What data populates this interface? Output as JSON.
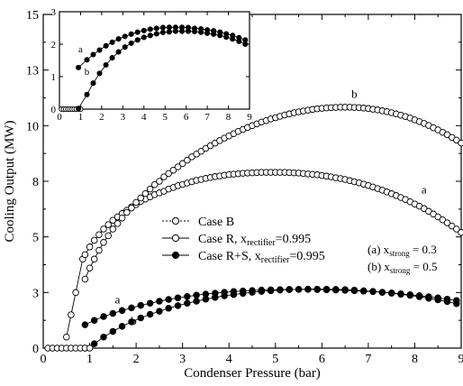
{
  "chart_data": {
    "type": "scatter",
    "xlabel": "Condenser Pressure (bar)",
    "ylabel": "Cooling Output (MW)",
    "xlim": [
      0,
      9
    ],
    "ylim": [
      0,
      15
    ],
    "x_ticks": [
      "0",
      "1",
      "2",
      "3",
      "4",
      "5",
      "6",
      "7",
      "8",
      "9"
    ],
    "y_ticks": [
      {
        "value": 0,
        "label": "0"
      },
      {
        "value": 2.5,
        "label": "3"
      },
      {
        "value": 5,
        "label": "5"
      },
      {
        "value": 7.5,
        "label": "8"
      },
      {
        "value": 10,
        "label": "10"
      },
      {
        "value": 12.5,
        "label": "13"
      },
      {
        "value": 15,
        "label": "15"
      }
    ],
    "grid": false,
    "legend": {
      "placement": "center",
      "entries": [
        {
          "label": "Case B",
          "marker": "dotted-circle",
          "subscript": "",
          "suffix": ""
        },
        {
          "label": "Case R, x",
          "marker": "open-circle",
          "subscript": "rectifier",
          "suffix": "=0.995"
        },
        {
          "label": "Case R+S, x",
          "marker": "filled-circle",
          "subscript": "rectifier",
          "suffix": "=0.995"
        }
      ]
    },
    "annotations": [
      {
        "prefix": "(a) x",
        "subscript": "strong",
        "suffix": " = 0.3"
      },
      {
        "prefix": "(b) x",
        "subscript": "strong",
        "suffix": " = 0.5"
      }
    ],
    "curve_labels": [
      "a",
      "b"
    ],
    "series": [
      {
        "style": "dotted-circle",
        "label": "",
        "x": [
          0.1,
          0.2,
          0.3,
          0.4,
          0.5,
          0.6,
          0.7,
          0.8,
          0.9,
          1.0
        ],
        "y": [
          0,
          0,
          0,
          0,
          0,
          0,
          0,
          0,
          0,
          0
        ]
      },
      {
        "style": "open-circle",
        "label": "a",
        "x": [
          0.5,
          0.6,
          0.7,
          0.85,
          0.9,
          1.0,
          1.1,
          1.2,
          1.3,
          1.4,
          1.5,
          1.6,
          1.7,
          1.8,
          1.9,
          2.0,
          2.1,
          2.2,
          2.3,
          2.4,
          2.5,
          2.6,
          2.7,
          2.8,
          2.9,
          3.0,
          3.1,
          3.2,
          3.3,
          3.4,
          3.5,
          3.6,
          3.7,
          3.8,
          3.9,
          4.0,
          4.1,
          4.2,
          4.3,
          4.4,
          4.5,
          4.6,
          4.7,
          4.8,
          4.9,
          5.0,
          5.1,
          5.2,
          5.3,
          5.4,
          5.5,
          5.6,
          5.7,
          5.8,
          5.9,
          6.0,
          6.1,
          6.2,
          6.3,
          6.4,
          6.5,
          6.6,
          6.7,
          6.8,
          6.9,
          7.0,
          7.1,
          7.2,
          7.3,
          7.4,
          7.5,
          7.6,
          7.7,
          7.8,
          7.9,
          8.0,
          8.1,
          8.2,
          8.3,
          8.4,
          8.5,
          8.6,
          8.7,
          8.8,
          8.9,
          9.0
        ],
        "y": [
          0.5,
          1.5,
          2.5,
          4.0,
          4.2,
          4.55,
          4.85,
          5.1,
          5.35,
          5.55,
          5.75,
          5.9,
          6.05,
          6.2,
          6.35,
          6.45,
          6.6,
          6.7,
          6.8,
          6.9,
          6.98,
          7.05,
          7.15,
          7.22,
          7.3,
          7.36,
          7.42,
          7.48,
          7.54,
          7.58,
          7.63,
          7.67,
          7.71,
          7.74,
          7.77,
          7.8,
          7.82,
          7.84,
          7.86,
          7.87,
          7.88,
          7.89,
          7.9,
          7.9,
          7.9,
          7.9,
          7.9,
          7.9,
          7.89,
          7.88,
          7.87,
          7.85,
          7.83,
          7.81,
          7.79,
          7.76,
          7.73,
          7.7,
          7.66,
          7.62,
          7.58,
          7.53,
          7.48,
          7.43,
          7.37,
          7.31,
          7.24,
          7.17,
          7.1,
          7.02,
          6.94,
          6.86,
          6.77,
          6.68,
          6.58,
          6.48,
          6.38,
          6.27,
          6.15,
          6.03,
          5.9,
          5.77,
          5.63,
          5.49,
          5.35,
          5.2
        ]
      },
      {
        "style": "open-circle",
        "label": "b",
        "x": [
          0.9,
          1.0,
          1.1,
          1.2,
          1.3,
          1.4,
          1.5,
          1.6,
          1.7,
          1.8,
          1.9,
          2.0,
          2.1,
          2.2,
          2.3,
          2.4,
          2.5,
          2.6,
          2.7,
          2.8,
          2.9,
          3.0,
          3.1,
          3.2,
          3.3,
          3.4,
          3.5,
          3.6,
          3.7,
          3.8,
          3.9,
          4.0,
          4.1,
          4.2,
          4.3,
          4.4,
          4.5,
          4.6,
          4.7,
          4.8,
          4.9,
          5.0,
          5.1,
          5.2,
          5.3,
          5.4,
          5.5,
          5.6,
          5.7,
          5.8,
          5.9,
          6.0,
          6.1,
          6.2,
          6.3,
          6.4,
          6.5,
          6.6,
          6.7,
          6.8,
          6.9,
          7.0,
          7.1,
          7.2,
          7.3,
          7.4,
          7.5,
          7.6,
          7.7,
          7.8,
          7.9,
          8.0,
          8.1,
          8.2,
          8.3,
          8.4,
          8.5,
          8.6,
          8.7,
          8.8,
          8.9,
          9.0
        ],
        "y": [
          3.1,
          3.6,
          4.0,
          4.4,
          4.75,
          5.05,
          5.35,
          5.6,
          5.85,
          6.1,
          6.3,
          6.55,
          6.75,
          6.95,
          7.15,
          7.35,
          7.5,
          7.7,
          7.85,
          8.0,
          8.15,
          8.3,
          8.45,
          8.6,
          8.72,
          8.85,
          8.98,
          9.1,
          9.22,
          9.33,
          9.44,
          9.54,
          9.64,
          9.74,
          9.83,
          9.92,
          10.0,
          10.08,
          10.16,
          10.23,
          10.3,
          10.36,
          10.42,
          10.48,
          10.53,
          10.58,
          10.62,
          10.66,
          10.7,
          10.73,
          10.76,
          10.78,
          10.8,
          10.81,
          10.82,
          10.83,
          10.83,
          10.83,
          10.82,
          10.81,
          10.79,
          10.77,
          10.74,
          10.71,
          10.67,
          10.63,
          10.58,
          10.53,
          10.47,
          10.41,
          10.34,
          10.26,
          10.18,
          10.1,
          10.01,
          9.91,
          9.81,
          9.7,
          9.59,
          9.47,
          9.35,
          9.22
        ]
      },
      {
        "style": "filled-circle",
        "label": "a",
        "x": [
          0.9,
          1.1,
          1.3,
          1.5,
          1.7,
          1.9,
          2.1,
          2.3,
          2.5,
          2.7,
          2.9,
          3.1,
          3.3,
          3.5,
          3.7,
          3.9,
          4.1,
          4.3,
          4.5,
          4.7,
          4.9,
          5.1,
          5.3,
          5.5,
          5.7,
          5.9,
          6.1,
          6.3,
          6.5,
          6.7,
          6.9,
          7.1,
          7.3,
          7.5,
          7.7,
          7.9,
          8.1,
          8.3,
          8.5,
          8.7,
          8.9
        ],
        "y": [
          1.05,
          1.25,
          1.42,
          1.56,
          1.69,
          1.81,
          1.92,
          2.02,
          2.11,
          2.19,
          2.26,
          2.32,
          2.38,
          2.43,
          2.47,
          2.51,
          2.54,
          2.57,
          2.59,
          2.61,
          2.62,
          2.63,
          2.64,
          2.64,
          2.64,
          2.63,
          2.62,
          2.61,
          2.6,
          2.58,
          2.56,
          2.54,
          2.51,
          2.48,
          2.44,
          2.4,
          2.36,
          2.31,
          2.26,
          2.2,
          2.14
        ]
      },
      {
        "style": "filled-circle",
        "label": "b",
        "x": [
          0.9,
          1.1,
          1.3,
          1.5,
          1.7,
          1.9,
          2.1,
          2.3,
          2.5,
          2.7,
          2.9,
          3.1,
          3.3,
          3.5,
          3.7,
          3.9,
          4.1,
          4.3,
          4.5,
          4.7,
          4.9,
          5.1,
          5.3,
          5.5,
          5.7,
          5.9,
          6.1,
          6.3,
          6.5,
          6.7,
          6.9,
          7.1,
          7.3,
          7.5,
          7.7,
          7.9,
          8.1,
          8.3,
          8.5,
          8.7,
          8.9
        ],
        "y": [
          0.0,
          0.2,
          0.5,
          0.75,
          0.98,
          1.18,
          1.36,
          1.52,
          1.66,
          1.79,
          1.91,
          2.02,
          2.11,
          2.2,
          2.28,
          2.35,
          2.41,
          2.46,
          2.51,
          2.55,
          2.58,
          2.61,
          2.63,
          2.64,
          2.65,
          2.65,
          2.65,
          2.64,
          2.63,
          2.61,
          2.58,
          2.55,
          2.51,
          2.47,
          2.42,
          2.37,
          2.31,
          2.24,
          2.17,
          2.09,
          2.0
        ]
      }
    ],
    "inset": {
      "xlim": [
        0,
        9
      ],
      "ylim": [
        0,
        3
      ],
      "x_ticks": [
        "0",
        "1",
        "2",
        "3",
        "4",
        "5",
        "6",
        "7",
        "8",
        "9"
      ],
      "y_ticks": [
        {
          "value": 0,
          "label": "0"
        },
        {
          "value": 1,
          "label": "1"
        },
        {
          "value": 2,
          "label": "2"
        },
        {
          "value": 3,
          "label": "3"
        }
      ],
      "curve_labels": [
        "a",
        "b"
      ],
      "series": [
        {
          "style": "dotted-circle",
          "label": "",
          "x": [
            0.1,
            0.2,
            0.3,
            0.4,
            0.5,
            0.6,
            0.7,
            0.8,
            0.9,
            1.0
          ],
          "y": [
            0,
            0,
            0,
            0,
            0,
            0,
            0,
            0,
            0,
            0
          ]
        },
        {
          "style": "filled-circle",
          "label": "a",
          "x": [
            0.9,
            1.3,
            1.6,
            1.9,
            2.2,
            2.5,
            2.8,
            3.1,
            3.4,
            3.7,
            4.0,
            4.3,
            4.6,
            4.9,
            5.2,
            5.5,
            5.8,
            6.1,
            6.4,
            6.7,
            7.0,
            7.3,
            7.6,
            7.9,
            8.2,
            8.5,
            8.8
          ],
          "y": [
            1.28,
            1.52,
            1.68,
            1.82,
            1.95,
            2.06,
            2.16,
            2.24,
            2.31,
            2.37,
            2.42,
            2.46,
            2.49,
            2.51,
            2.52,
            2.52,
            2.52,
            2.51,
            2.49,
            2.47,
            2.44,
            2.41,
            2.37,
            2.32,
            2.27,
            2.2,
            2.13
          ]
        },
        {
          "style": "filled-circle",
          "label": "b",
          "x": [
            0.9,
            1.3,
            1.6,
            1.9,
            2.2,
            2.5,
            2.8,
            3.1,
            3.4,
            3.7,
            4.0,
            4.3,
            4.6,
            4.9,
            5.2,
            5.5,
            5.8,
            6.1,
            6.4,
            6.7,
            7.0,
            7.3,
            7.6,
            7.9,
            8.2,
            8.5,
            8.8
          ],
          "y": [
            0.02,
            0.45,
            0.8,
            1.1,
            1.36,
            1.58,
            1.76,
            1.91,
            2.03,
            2.13,
            2.21,
            2.27,
            2.32,
            2.36,
            2.38,
            2.4,
            2.4,
            2.4,
            2.39,
            2.37,
            2.34,
            2.31,
            2.27,
            2.22,
            2.16,
            2.09,
            2.0
          ]
        }
      ]
    }
  }
}
